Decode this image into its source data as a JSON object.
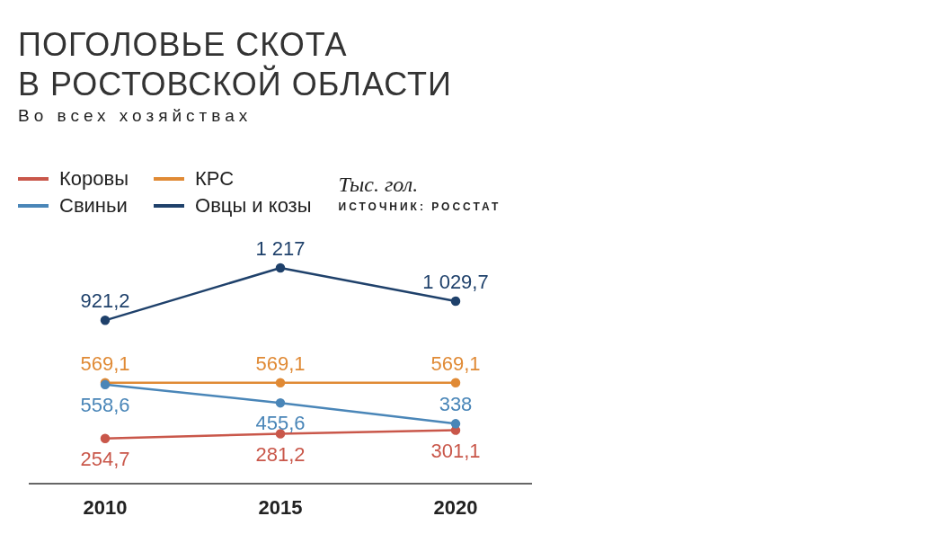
{
  "chart_data": {
    "type": "line",
    "title": "ПОГОЛОВЬЕ СКОТА\nВ РОСТОВСКОЙ ОБЛАСТИ",
    "subtitle": "Во всех хозяйствах",
    "annotations": [
      "Тыс. гол.",
      "ИСТОЧНИК: РОССТАТ"
    ],
    "categories": [
      "2010",
      "2015",
      "2020"
    ],
    "legend": "top left",
    "marker": "circle",
    "series": [
      {
        "name": "Коровы",
        "color": "#c9574a",
        "values": [
          254.7,
          281.2,
          301.1
        ],
        "value_labels": [
          "254,7",
          "281,2",
          "301,1"
        ]
      },
      {
        "name": "КРС",
        "color": "#e08a35",
        "values": [
          569.1,
          569.1,
          569.1
        ],
        "value_labels": [
          "569,1",
          "569,1",
          "569,1"
        ]
      },
      {
        "name": "Свиньи",
        "color": "#4a86b8",
        "values": [
          558.6,
          455.6,
          338
        ],
        "value_labels": [
          "558,6",
          "455,6",
          "338"
        ]
      },
      {
        "name": "Овцы и козы",
        "color": "#1f416b",
        "values": [
          921.2,
          1217,
          1029.7
        ],
        "value_labels": [
          "921,2",
          "1 217",
          "1 029,7"
        ]
      }
    ]
  }
}
